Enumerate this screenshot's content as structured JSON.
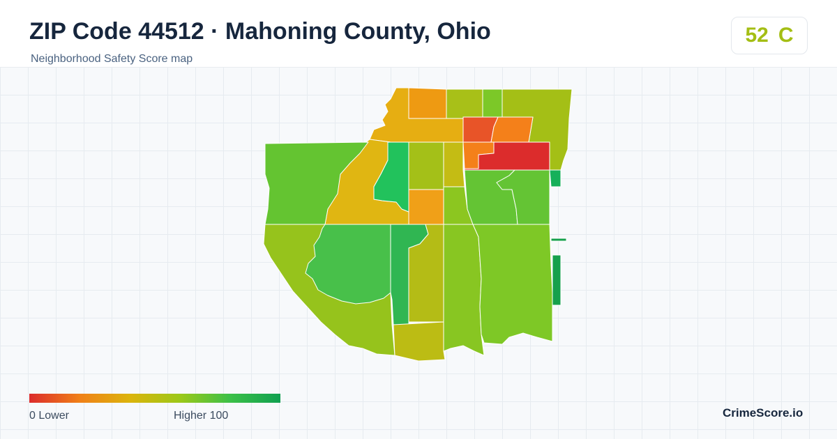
{
  "header": {
    "title": "ZIP Code 44512 · Mahoning County, Ohio",
    "subtitle": "Neighborhood Safety Score map"
  },
  "score": {
    "value": "52",
    "grade": "C",
    "color": "#a4be14"
  },
  "legend": {
    "low_label": "0  Lower",
    "high_label": "Higher  100",
    "colors": [
      "#dc2c2c",
      "#f08018",
      "#dcb40c",
      "#9cc818",
      "#3cc048",
      "#10a050"
    ]
  },
  "brand": "CrimeScore.io",
  "map_regions": [
    {
      "name": "region-north-1",
      "color": "#e6ae12"
    },
    {
      "name": "region-north-2",
      "color": "#ee9a12"
    },
    {
      "name": "region-north-3",
      "color": "#a8c018"
    },
    {
      "name": "region-north-4",
      "color": "#7cc828"
    },
    {
      "name": "region-northeast",
      "color": "#a4bf16"
    },
    {
      "name": "region-hotspot-1",
      "color": "#e85428"
    },
    {
      "name": "region-hotspot-2",
      "color": "#f4801a"
    },
    {
      "name": "region-hotspot-3",
      "color": "#f4801a"
    },
    {
      "name": "region-hotspot-4",
      "color": "#dc2c2c"
    },
    {
      "name": "region-northwest-strip",
      "color": "#e0b612"
    },
    {
      "name": "region-west",
      "color": "#64c431"
    },
    {
      "name": "region-west-central",
      "color": "#e0b612"
    },
    {
      "name": "region-green-strip",
      "color": "#22c25c"
    },
    {
      "name": "region-central-1",
      "color": "#a4c018"
    },
    {
      "name": "region-central-2",
      "color": "#c4bc14"
    },
    {
      "name": "region-central-3",
      "color": "#b4bc16"
    },
    {
      "name": "region-central-orange",
      "color": "#f0a018"
    },
    {
      "name": "region-mid-east-1",
      "color": "#8cc620"
    },
    {
      "name": "region-mid-east-2",
      "color": "#64c434"
    },
    {
      "name": "region-mid-east-3",
      "color": "#64c434"
    },
    {
      "name": "region-east-edge-1",
      "color": "#16b05a"
    },
    {
      "name": "region-southwest",
      "color": "#96c31c"
    },
    {
      "name": "region-southwest-inner",
      "color": "#48c04a"
    },
    {
      "name": "region-south-green",
      "color": "#30b652"
    },
    {
      "name": "region-south-central",
      "color": "#b4bc16"
    },
    {
      "name": "region-south-1",
      "color": "#88c622"
    },
    {
      "name": "region-south-2",
      "color": "#7ec826"
    },
    {
      "name": "region-south-bottom",
      "color": "#bcbc14"
    },
    {
      "name": "region-east-edge-2",
      "color": "#16a04c"
    },
    {
      "name": "region-east-edge-3",
      "color": "#16a04c"
    }
  ]
}
